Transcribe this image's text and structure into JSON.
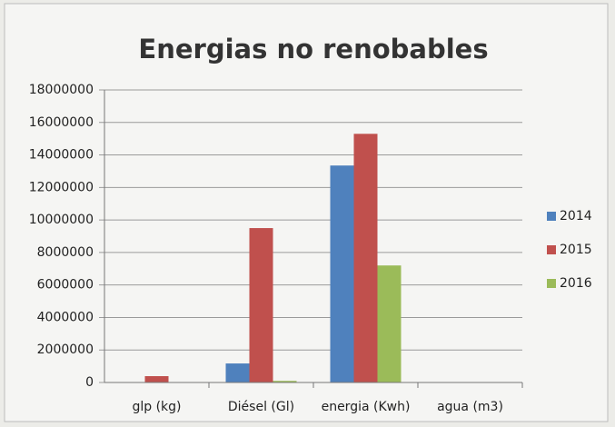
{
  "chart_data": {
    "type": "bar",
    "title": "Energias no renobables",
    "categories": [
      "glp (kg)",
      "Diésel (Gl)",
      "energia (Kwh)",
      "agua (m3)"
    ],
    "series": [
      {
        "name": "2014",
        "color": "#4f81bd",
        "values": [
          0,
          1170000,
          13350000,
          0
        ]
      },
      {
        "name": "2015",
        "color": "#c0504d",
        "values": [
          390000,
          9500000,
          15300000,
          0
        ]
      },
      {
        "name": "2016",
        "color": "#9bbb59",
        "values": [
          0,
          100000,
          7200000,
          0
        ]
      }
    ],
    "ylim": [
      0,
      18000000
    ],
    "yticks": [
      0,
      2000000,
      4000000,
      6000000,
      8000000,
      10000000,
      12000000,
      14000000,
      16000000,
      18000000
    ],
    "grid": true,
    "legend": "right"
  }
}
